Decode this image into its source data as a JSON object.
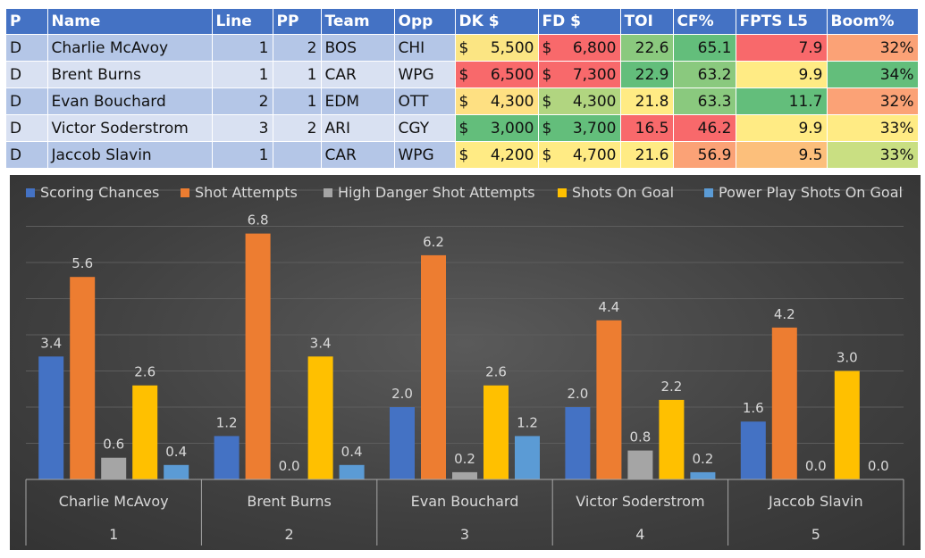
{
  "table": {
    "headers": [
      "P",
      "Name",
      "Line",
      "PP",
      "Team",
      "Opp",
      "DK $",
      "FD $",
      "TOI",
      "CF%",
      "FPTS L5",
      "Boom%"
    ],
    "rows": [
      {
        "pos": "D",
        "name": "Charlie McAvoy",
        "line": "1",
        "pp": "2",
        "team": "BOS",
        "opp": "CHI",
        "dk": "5,500",
        "fd": "6,800",
        "toi": "22.6",
        "cf": "65.1",
        "fpts": "7.9",
        "boom": "32%"
      },
      {
        "pos": "D",
        "name": "Brent Burns",
        "line": "1",
        "pp": "1",
        "team": "CAR",
        "opp": "WPG",
        "dk": "6,500",
        "fd": "7,300",
        "toi": "22.9",
        "cf": "63.2",
        "fpts": "9.9",
        "boom": "34%"
      },
      {
        "pos": "D",
        "name": "Evan Bouchard",
        "line": "2",
        "pp": "1",
        "team": "EDM",
        "opp": "OTT",
        "dk": "4,300",
        "fd": "4,300",
        "toi": "21.8",
        "cf": "63.3",
        "fpts": "11.7",
        "boom": "32%"
      },
      {
        "pos": "D",
        "name": "Victor Soderstrom",
        "line": "3",
        "pp": "2",
        "team": "ARI",
        "opp": "CGY",
        "dk": "3,000",
        "fd": "3,700",
        "toi": "16.5",
        "cf": "46.2",
        "fpts": "9.9",
        "boom": "33%"
      },
      {
        "pos": "D",
        "name": "Jaccob Slavin",
        "line": "1",
        "pp": "",
        "team": "CAR",
        "opp": "WPG",
        "dk": "4,200",
        "fd": "4,700",
        "toi": "21.6",
        "cf": "56.9",
        "fpts": "9.5",
        "boom": "33%"
      }
    ],
    "currency_symbol": "$",
    "heat": {
      "dk": [
        "#fbe583",
        "#f8696b",
        "#fee082",
        "#63be7b",
        "#ffeb84"
      ],
      "fd": [
        "#f8696b",
        "#f8696b",
        "#b1d580",
        "#63be7b",
        "#ffeb84"
      ],
      "toi": [
        "#8ac97e",
        "#63be7b",
        "#ffeb84",
        "#f8696b",
        "#ffeb84"
      ],
      "cf": [
        "#63be7b",
        "#8ac97e",
        "#8ac97e",
        "#f8696b",
        "#fba276"
      ],
      "fpts": [
        "#f8696b",
        "#ffeb84",
        "#63be7b",
        "#ffeb84",
        "#fcbf7b"
      ],
      "boom": [
        "#fba276",
        "#63be7b",
        "#fba276",
        "#ffeb84",
        "#c9df82"
      ]
    }
  },
  "chart_data": {
    "type": "bar",
    "title": "",
    "legend_position": "top",
    "categories": [
      "Charlie McAvoy",
      "Brent Burns",
      "Evan Bouchard",
      "Victor Soderstrom",
      "Jaccob Slavin"
    ],
    "category_sublabels": [
      "1",
      "2",
      "3",
      "4",
      "5"
    ],
    "series": [
      {
        "name": "Scoring Chances",
        "color": "#4472c4",
        "values": [
          3.4,
          1.2,
          2.0,
          2.0,
          1.6
        ]
      },
      {
        "name": "Shot Attempts",
        "color": "#ed7d31",
        "values": [
          5.6,
          6.8,
          6.2,
          4.4,
          4.2
        ]
      },
      {
        "name": "High Danger Shot Attempts",
        "color": "#a5a5a5",
        "values": [
          0.6,
          0.0,
          0.2,
          0.8,
          0.0
        ]
      },
      {
        "name": "Shots On Goal",
        "color": "#ffc000",
        "values": [
          2.6,
          3.4,
          2.6,
          2.2,
          3.0
        ]
      },
      {
        "name": "Power Play Shots On Goal",
        "color": "#5b9bd5",
        "values": [
          0.4,
          0.4,
          1.2,
          0.2,
          0.0
        ]
      }
    ],
    "ylim": [
      0,
      8
    ],
    "grid": true,
    "value_format": "0.0"
  }
}
